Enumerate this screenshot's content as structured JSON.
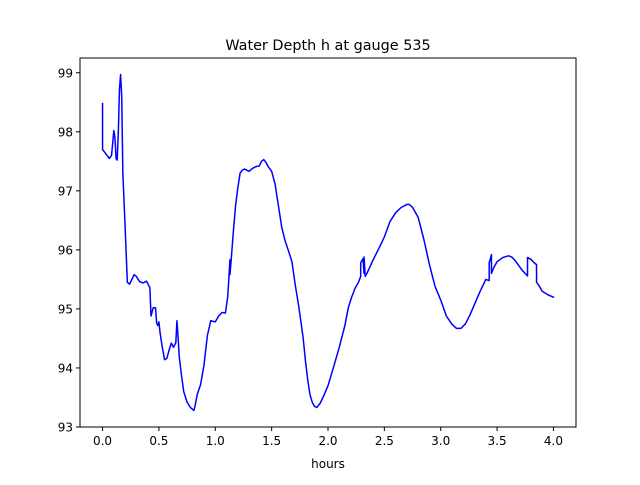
{
  "chart_data": {
    "type": "line",
    "title": "Water Depth h at gauge 535",
    "xlabel": "hours",
    "ylabel": "",
    "xlim": [
      -0.2,
      4.2
    ],
    "ylim": [
      93,
      99.25
    ],
    "xticks": [
      0.0,
      0.5,
      1.0,
      1.5,
      2.0,
      2.5,
      3.0,
      3.5,
      4.0
    ],
    "xtick_labels": [
      "0.0",
      "0.5",
      "1.0",
      "1.5",
      "2.0",
      "2.5",
      "3.0",
      "3.5",
      "4.0"
    ],
    "yticks": [
      93,
      94,
      95,
      96,
      97,
      98,
      99
    ],
    "ytick_labels": [
      "93",
      "94",
      "95",
      "96",
      "97",
      "98",
      "99"
    ],
    "grid": false,
    "legend": "none",
    "series": [
      {
        "color": "#0000ff",
        "x": [
          0.0,
          0.0,
          0.02,
          0.04,
          0.06,
          0.08,
          0.1,
          0.11,
          0.12,
          0.13,
          0.14,
          0.15,
          0.16,
          0.17,
          0.18,
          0.2,
          0.22,
          0.24,
          0.26,
          0.28,
          0.3,
          0.33,
          0.36,
          0.39,
          0.42,
          0.43,
          0.45,
          0.47,
          0.48,
          0.49,
          0.5,
          0.51,
          0.53,
          0.55,
          0.57,
          0.59,
          0.61,
          0.63,
          0.65,
          0.66,
          0.67,
          0.68,
          0.7,
          0.72,
          0.75,
          0.78,
          0.81,
          0.82,
          0.84,
          0.87,
          0.9,
          0.93,
          0.96,
          1.0,
          1.03,
          1.06,
          1.09,
          1.11,
          1.12,
          1.13,
          1.13,
          1.14,
          1.16,
          1.18,
          1.2,
          1.22,
          1.24,
          1.26,
          1.28,
          1.3,
          1.33,
          1.36,
          1.39,
          1.41,
          1.43,
          1.45,
          1.47,
          1.5,
          1.53,
          1.56,
          1.59,
          1.62,
          1.65,
          1.68,
          1.71,
          1.74,
          1.76,
          1.78,
          1.8,
          1.82,
          1.84,
          1.86,
          1.88,
          1.9,
          1.93,
          1.96,
          2.0,
          2.05,
          2.1,
          2.15,
          2.18,
          2.21,
          2.24,
          2.27,
          2.29,
          2.29,
          2.31,
          2.32,
          2.32,
          2.33,
          2.35,
          2.4,
          2.45,
          2.5,
          2.55,
          2.6,
          2.65,
          2.7,
          2.72,
          2.75,
          2.8,
          2.85,
          2.9,
          2.95,
          3.0,
          3.05,
          3.1,
          3.14,
          3.18,
          3.22,
          3.26,
          3.3,
          3.35,
          3.4,
          3.43,
          3.43,
          3.45,
          3.45,
          3.47,
          3.5,
          3.55,
          3.6,
          3.63,
          3.66,
          3.69,
          3.72,
          3.75,
          3.77,
          3.77,
          3.8,
          3.83,
          3.85,
          3.85,
          3.87,
          3.9,
          3.95,
          4.0
        ],
        "y": [
          98.48,
          97.7,
          97.65,
          97.6,
          97.55,
          97.6,
          98.02,
          97.9,
          97.55,
          97.52,
          98.0,
          98.72,
          98.97,
          98.6,
          97.3,
          96.4,
          95.45,
          95.42,
          95.5,
          95.58,
          95.55,
          95.46,
          95.44,
          95.47,
          95.36,
          94.88,
          95.02,
          95.02,
          94.76,
          94.72,
          94.78,
          94.6,
          94.35,
          94.14,
          94.16,
          94.3,
          94.42,
          94.35,
          94.43,
          94.8,
          94.52,
          94.2,
          93.88,
          93.6,
          93.42,
          93.33,
          93.28,
          93.35,
          93.55,
          93.72,
          94.05,
          94.55,
          94.8,
          94.78,
          94.88,
          94.94,
          94.93,
          95.2,
          95.5,
          95.83,
          95.58,
          95.8,
          96.3,
          96.75,
          97.05,
          97.3,
          97.35,
          97.37,
          97.35,
          97.33,
          97.38,
          97.41,
          97.42,
          97.5,
          97.53,
          97.48,
          97.41,
          97.33,
          97.12,
          96.75,
          96.38,
          96.15,
          95.98,
          95.8,
          95.4,
          95.05,
          94.78,
          94.5,
          94.12,
          93.8,
          93.55,
          93.42,
          93.35,
          93.33,
          93.4,
          93.52,
          93.7,
          94.02,
          94.35,
          94.72,
          95.02,
          95.2,
          95.35,
          95.45,
          95.55,
          95.78,
          95.85,
          95.6,
          95.88,
          95.55,
          95.62,
          95.83,
          96.02,
          96.22,
          96.48,
          96.63,
          96.72,
          96.77,
          96.77,
          96.72,
          96.55,
          96.18,
          95.75,
          95.38,
          95.15,
          94.88,
          94.74,
          94.67,
          94.67,
          94.75,
          94.9,
          95.08,
          95.3,
          95.5,
          95.48,
          95.78,
          95.92,
          95.6,
          95.7,
          95.8,
          95.87,
          95.9,
          95.88,
          95.82,
          95.74,
          95.66,
          95.6,
          95.56,
          95.87,
          95.84,
          95.78,
          95.75,
          95.45,
          95.4,
          95.3,
          95.24,
          95.2
        ]
      }
    ]
  }
}
